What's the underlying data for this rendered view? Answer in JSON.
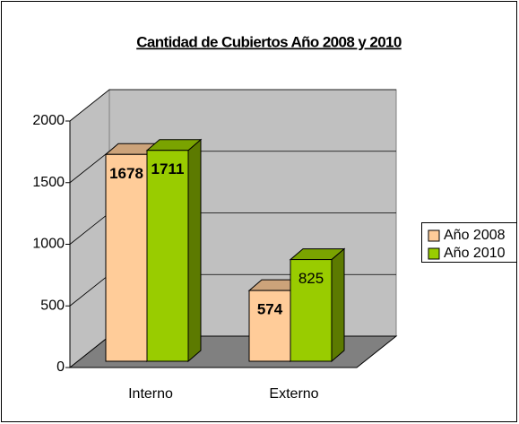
{
  "chart_data": {
    "type": "bar3d",
    "title": "Cantidad de Cubiertos Año 2008 y 2010",
    "categories": [
      "Interno",
      "Externo"
    ],
    "series": [
      {
        "name": "Año 2008",
        "color": "#FFCC99",
        "values": [
          1678,
          574
        ]
      },
      {
        "name": "Año 2010",
        "color": "#99CC00",
        "values": [
          1711,
          825
        ]
      }
    ],
    "ylim": [
      0,
      2000
    ],
    "yticks": [
      0,
      500,
      1000,
      1500,
      2000
    ],
    "grid": true,
    "legend": "right"
  }
}
